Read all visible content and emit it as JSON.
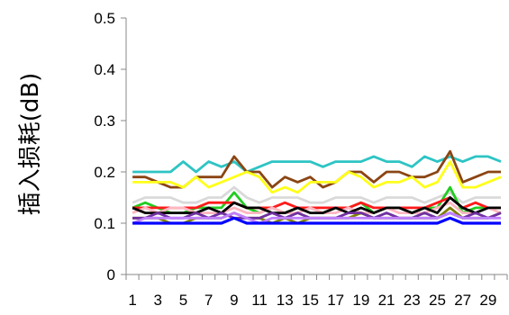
{
  "chart_data": {
    "type": "line",
    "title": "",
    "xlabel": "",
    "ylabel": "插入损耗(dB)",
    "x": [
      1,
      2,
      3,
      4,
      5,
      6,
      7,
      8,
      9,
      10,
      11,
      12,
      13,
      14,
      15,
      16,
      17,
      18,
      19,
      20,
      21,
      22,
      23,
      24,
      25,
      26,
      27,
      28,
      29,
      30
    ],
    "x_tick_labels": [
      "1",
      "3",
      "5",
      "7",
      "9",
      "11",
      "13",
      "15",
      "17",
      "19",
      "21",
      "23",
      "25",
      "27",
      "29"
    ],
    "y_tick_labels": [
      "0",
      "0.1",
      "0.2",
      "0.3",
      "0.4",
      "0.5"
    ],
    "ylim": [
      0,
      0.5
    ],
    "grid": false,
    "legend": "none",
    "series": [
      {
        "color": "#2ec4c4",
        "values": [
          0.2,
          0.2,
          0.2,
          0.2,
          0.22,
          0.2,
          0.22,
          0.21,
          0.22,
          0.2,
          0.21,
          0.22,
          0.22,
          0.22,
          0.22,
          0.21,
          0.22,
          0.22,
          0.22,
          0.23,
          0.22,
          0.22,
          0.21,
          0.23,
          0.22,
          0.23,
          0.22,
          0.23,
          0.23,
          0.22
        ]
      },
      {
        "color": "#8b4513",
        "values": [
          0.19,
          0.19,
          0.18,
          0.17,
          0.17,
          0.19,
          0.19,
          0.19,
          0.23,
          0.2,
          0.2,
          0.17,
          0.19,
          0.18,
          0.19,
          0.17,
          0.18,
          0.2,
          0.2,
          0.18,
          0.2,
          0.2,
          0.19,
          0.19,
          0.2,
          0.24,
          0.18,
          0.19,
          0.2,
          0.2
        ]
      },
      {
        "color": "#ffff1a",
        "values": [
          0.18,
          0.18,
          0.18,
          0.18,
          0.17,
          0.19,
          0.17,
          0.18,
          0.19,
          0.2,
          0.19,
          0.16,
          0.17,
          0.16,
          0.18,
          0.18,
          0.18,
          0.2,
          0.19,
          0.17,
          0.18,
          0.18,
          0.19,
          0.17,
          0.18,
          0.22,
          0.17,
          0.17,
          0.18,
          0.19
        ]
      },
      {
        "color": "#d9d9d9",
        "values": [
          0.14,
          0.15,
          0.15,
          0.15,
          0.14,
          0.14,
          0.15,
          0.15,
          0.17,
          0.15,
          0.14,
          0.15,
          0.15,
          0.15,
          0.14,
          0.14,
          0.15,
          0.15,
          0.15,
          0.14,
          0.15,
          0.15,
          0.15,
          0.14,
          0.15,
          0.16,
          0.14,
          0.15,
          0.15,
          0.15
        ]
      },
      {
        "color": "#22cc22",
        "values": [
          0.13,
          0.14,
          0.13,
          0.12,
          0.12,
          0.13,
          0.13,
          0.13,
          0.16,
          0.13,
          0.12,
          0.13,
          0.12,
          0.13,
          0.13,
          0.12,
          0.13,
          0.13,
          0.14,
          0.12,
          0.13,
          0.13,
          0.12,
          0.13,
          0.13,
          0.17,
          0.12,
          0.13,
          0.13,
          0.13
        ]
      },
      {
        "color": "#ff1a1a",
        "values": [
          0.13,
          0.13,
          0.13,
          0.13,
          0.13,
          0.13,
          0.14,
          0.14,
          0.14,
          0.13,
          0.13,
          0.13,
          0.14,
          0.13,
          0.13,
          0.13,
          0.13,
          0.13,
          0.14,
          0.13,
          0.13,
          0.13,
          0.13,
          0.13,
          0.14,
          0.15,
          0.13,
          0.14,
          0.13,
          0.13
        ]
      },
      {
        "color": "#ffb6c1",
        "values": [
          0.12,
          0.13,
          0.12,
          0.13,
          0.13,
          0.12,
          0.12,
          0.12,
          0.13,
          0.12,
          0.12,
          0.13,
          0.12,
          0.12,
          0.13,
          0.12,
          0.12,
          0.13,
          0.12,
          0.12,
          0.13,
          0.12,
          0.12,
          0.12,
          0.13,
          0.14,
          0.12,
          0.12,
          0.13,
          0.12
        ]
      },
      {
        "color": "#000000",
        "values": [
          0.13,
          0.12,
          0.12,
          0.12,
          0.12,
          0.12,
          0.13,
          0.12,
          0.14,
          0.13,
          0.13,
          0.12,
          0.12,
          0.13,
          0.12,
          0.12,
          0.13,
          0.12,
          0.13,
          0.12,
          0.13,
          0.13,
          0.12,
          0.13,
          0.12,
          0.15,
          0.13,
          0.12,
          0.13,
          0.13
        ]
      },
      {
        "color": "#808000",
        "values": [
          0.11,
          0.11,
          0.11,
          0.1,
          0.1,
          0.11,
          0.11,
          0.11,
          0.12,
          0.11,
          0.11,
          0.1,
          0.11,
          0.1,
          0.11,
          0.11,
          0.11,
          0.11,
          0.12,
          0.11,
          0.11,
          0.11,
          0.11,
          0.11,
          0.11,
          0.13,
          0.11,
          0.11,
          0.11,
          0.12
        ]
      },
      {
        "color": "#7030a0",
        "values": [
          0.11,
          0.11,
          0.12,
          0.11,
          0.11,
          0.12,
          0.11,
          0.12,
          0.11,
          0.11,
          0.11,
          0.12,
          0.11,
          0.12,
          0.11,
          0.11,
          0.11,
          0.12,
          0.12,
          0.11,
          0.12,
          0.11,
          0.11,
          0.12,
          0.11,
          0.12,
          0.11,
          0.12,
          0.11,
          0.12
        ]
      },
      {
        "color": "#c080ff",
        "values": [
          0.1,
          0.11,
          0.11,
          0.11,
          0.11,
          0.11,
          0.11,
          0.11,
          0.12,
          0.11,
          0.1,
          0.11,
          0.11,
          0.11,
          0.11,
          0.11,
          0.11,
          0.11,
          0.11,
          0.11,
          0.11,
          0.11,
          0.11,
          0.11,
          0.11,
          0.12,
          0.11,
          0.11,
          0.11,
          0.11
        ]
      },
      {
        "color": "#0000ff",
        "values": [
          0.1,
          0.1,
          0.1,
          0.1,
          0.1,
          0.1,
          0.1,
          0.1,
          0.11,
          0.1,
          0.1,
          0.1,
          0.1,
          0.1,
          0.1,
          0.1,
          0.1,
          0.1,
          0.1,
          0.1,
          0.1,
          0.1,
          0.1,
          0.1,
          0.1,
          0.11,
          0.1,
          0.1,
          0.1,
          0.1
        ]
      }
    ]
  }
}
